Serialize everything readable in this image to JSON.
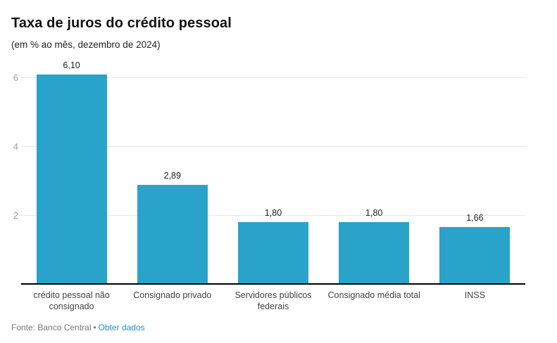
{
  "header": {
    "title": "Taxa de juros do crédito pessoal",
    "subtitle": "(em % ao mês, dezembro de 2024)"
  },
  "chart_data": {
    "type": "bar",
    "title": "Taxa de juros do crédito pessoal",
    "subtitle": "(em % ao mês, dezembro de 2024)",
    "categories": [
      "crédito pessoal não consignado",
      "Consignado privado",
      "Servidores públicos federais",
      "Consignado média total",
      "INSS"
    ],
    "values": [
      6.1,
      2.89,
      1.8,
      1.8,
      1.66
    ],
    "value_labels": [
      "6,10",
      "2,89",
      "1,80",
      "1,80",
      "1,66"
    ],
    "xlabel": "",
    "ylabel": "",
    "ylim": [
      0,
      6.5
    ],
    "yticks": [
      2,
      4,
      6
    ],
    "grid": true,
    "legend": false,
    "bar_color": "#29a3ca"
  },
  "footer": {
    "source_label": "Fonte: Banco Central",
    "separator": "•",
    "link_label": "Obter dados"
  },
  "colors": {
    "bar": "#29a3ca",
    "link": "#1e8fd2",
    "tick_label": "#9e9e9e",
    "gridline": "#e6e6e6",
    "axis_line": "#000000",
    "source_text": "#757575",
    "title": "#111111"
  }
}
